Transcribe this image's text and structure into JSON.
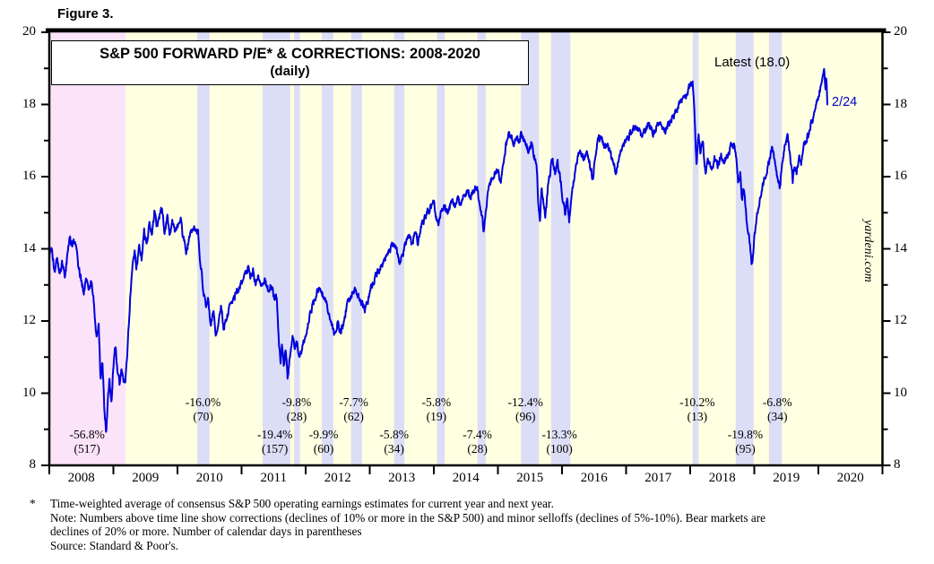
{
  "figure_label": "Figure 3.",
  "title_line1": "S&P 500 FORWARD P/E* & CORRECTIONS: 2008-2020",
  "title_line2": "(daily)",
  "latest_label": "Latest (18.0)",
  "end_date_label": "2/24",
  "watermark": "yardeni.com",
  "footnotes": {
    "asterisk": "*",
    "lines": [
      "Time-weighted average of consensus S&P 500 operating earnings estimates for current year and next year.",
      "Note: Numbers above time line show corrections (declines of 10% or more in the S&P 500) and minor selloffs (declines of 5%-10%). Bear markets are",
      "declines of 20% or more. Number of calendar days in parentheses",
      "Source: Standard & Poor's."
    ]
  },
  "colors": {
    "plot_background": "#FFFFE1",
    "bear_market_band": "#FBE3F9",
    "correction_band": "#DCDDF6",
    "line": "#0000DC",
    "end_date_text": "#0000CC",
    "frame": "#000000"
  },
  "chart_data": {
    "type": "line",
    "title": "S&P 500 FORWARD P/E* & CORRECTIONS: 2008-2020",
    "subtitle": "(daily)",
    "series_name": "S&P 500 forward P/E (daily)",
    "latest_value": 18.0,
    "latest_date": "2/24",
    "x_axis": {
      "min": 2008,
      "max": 2021,
      "year_labels": [
        "2008",
        "2009",
        "2010",
        "2011",
        "2012",
        "2013",
        "2014",
        "2015",
        "2016",
        "2017",
        "2018",
        "2019",
        "2020"
      ]
    },
    "y_axis": {
      "min": 8,
      "max": 20,
      "tick_step": 1,
      "label_step": 2,
      "labels": [
        "8",
        "10",
        "12",
        "14",
        "16",
        "18",
        "20"
      ]
    },
    "grid": false,
    "bear_market": {
      "t0": 2008.0,
      "t1": 2009.19,
      "pct": "-56.8%",
      "days": "(517)",
      "row": "lower",
      "label_t": 2008.59
    },
    "corrections": [
      {
        "t0": 2010.31,
        "t1": 2010.5,
        "pct": "-16.0%",
        "days": "(70)",
        "row": "upper",
        "label_t": 2010.4
      },
      {
        "t0": 2011.33,
        "t1": 2011.76,
        "pct": "-19.4%",
        "days": "(157)",
        "row": "lower",
        "label_t": 2011.52
      },
      {
        "t0": 2011.82,
        "t1": 2011.91,
        "pct": "-9.8%",
        "days": "(28)",
        "row": "upper",
        "label_t": 2011.86
      },
      {
        "t0": 2012.25,
        "t1": 2012.43,
        "pct": "-9.9%",
        "days": "(60)",
        "row": "lower",
        "label_t": 2012.28
      },
      {
        "t0": 2012.71,
        "t1": 2012.88,
        "pct": "-7.7%",
        "days": "(62)",
        "row": "upper",
        "label_t": 2012.75
      },
      {
        "t0": 2013.38,
        "t1": 2013.54,
        "pct": "-5.8%",
        "days": "(34)",
        "row": "lower",
        "label_t": 2013.38
      },
      {
        "t0": 2014.05,
        "t1": 2014.17,
        "pct": "-5.8%",
        "days": "(19)",
        "row": "upper",
        "label_t": 2014.04
      },
      {
        "t0": 2014.68,
        "t1": 2014.81,
        "pct": "-7.4%",
        "days": "(28)",
        "row": "lower",
        "label_t": 2014.68
      },
      {
        "t0": 2015.36,
        "t1": 2015.64,
        "pct": "-12.4%",
        "days": "(96)",
        "row": "upper",
        "label_t": 2015.43
      },
      {
        "t0": 2015.83,
        "t1": 2016.13,
        "pct": "-13.3%",
        "days": "(100)",
        "row": "lower",
        "label_t": 2015.96
      },
      {
        "t0": 2018.04,
        "t1": 2018.13,
        "pct": "-10.2%",
        "days": "(13)",
        "row": "upper",
        "label_t": 2018.11
      },
      {
        "t0": 2018.71,
        "t1": 2018.99,
        "pct": "-19.8%",
        "days": "(95)",
        "row": "lower",
        "label_t": 2018.86
      },
      {
        "t0": 2019.23,
        "t1": 2019.43,
        "pct": "-6.8%",
        "days": "(34)",
        "row": "upper",
        "label_t": 2019.36
      }
    ],
    "keypoints": [
      [
        2008.0,
        13.8
      ],
      [
        2008.04,
        14.0
      ],
      [
        2008.08,
        13.4
      ],
      [
        2008.12,
        13.7
      ],
      [
        2008.16,
        13.3
      ],
      [
        2008.2,
        13.6
      ],
      [
        2008.24,
        13.2
      ],
      [
        2008.28,
        13.8
      ],
      [
        2008.32,
        14.3
      ],
      [
        2008.36,
        14.1
      ],
      [
        2008.4,
        14.3
      ],
      [
        2008.45,
        13.6
      ],
      [
        2008.5,
        13.1
      ],
      [
        2008.54,
        12.8
      ],
      [
        2008.58,
        13.2
      ],
      [
        2008.62,
        12.9
      ],
      [
        2008.66,
        13.1
      ],
      [
        2008.7,
        12.4
      ],
      [
        2008.74,
        11.5
      ],
      [
        2008.77,
        11.9
      ],
      [
        2008.8,
        10.4
      ],
      [
        2008.83,
        10.9
      ],
      [
        2008.86,
        9.5
      ],
      [
        2008.89,
        8.9
      ],
      [
        2008.92,
        10.0
      ],
      [
        2008.94,
        10.4
      ],
      [
        2008.97,
        9.7
      ],
      [
        2009.0,
        10.8
      ],
      [
        2009.03,
        11.3
      ],
      [
        2009.06,
        10.7
      ],
      [
        2009.1,
        10.2
      ],
      [
        2009.13,
        10.7
      ],
      [
        2009.16,
        10.2
      ],
      [
        2009.19,
        10.4
      ],
      [
        2009.22,
        11.2
      ],
      [
        2009.26,
        12.6
      ],
      [
        2009.3,
        13.5
      ],
      [
        2009.33,
        13.9
      ],
      [
        2009.36,
        13.4
      ],
      [
        2009.4,
        14.1
      ],
      [
        2009.44,
        13.7
      ],
      [
        2009.48,
        14.5
      ],
      [
        2009.52,
        14.1
      ],
      [
        2009.56,
        14.7
      ],
      [
        2009.6,
        14.3
      ],
      [
        2009.64,
        15.0
      ],
      [
        2009.68,
        14.6
      ],
      [
        2009.72,
        14.9
      ],
      [
        2009.76,
        15.1
      ],
      [
        2009.8,
        14.4
      ],
      [
        2009.84,
        14.9
      ],
      [
        2009.88,
        14.4
      ],
      [
        2009.92,
        14.8
      ],
      [
        2009.96,
        14.5
      ],
      [
        2010.0,
        14.6
      ],
      [
        2010.05,
        14.8
      ],
      [
        2010.1,
        14.2
      ],
      [
        2010.14,
        13.9
      ],
      [
        2010.18,
        14.3
      ],
      [
        2010.23,
        14.6
      ],
      [
        2010.28,
        14.6
      ],
      [
        2010.32,
        14.4
      ],
      [
        2010.36,
        13.6
      ],
      [
        2010.4,
        12.9
      ],
      [
        2010.44,
        12.4
      ],
      [
        2010.48,
        12.6
      ],
      [
        2010.52,
        11.9
      ],
      [
        2010.56,
        12.3
      ],
      [
        2010.6,
        11.6
      ],
      [
        2010.64,
        12.0
      ],
      [
        2010.68,
        12.4
      ],
      [
        2010.72,
        11.8
      ],
      [
        2010.76,
        12.0
      ],
      [
        2010.8,
        12.3
      ],
      [
        2010.85,
        12.5
      ],
      [
        2010.9,
        12.7
      ],
      [
        2010.95,
        12.9
      ],
      [
        2011.0,
        13.1
      ],
      [
        2011.05,
        13.3
      ],
      [
        2011.1,
        13.5
      ],
      [
        2011.14,
        13.2
      ],
      [
        2011.18,
        13.4
      ],
      [
        2011.22,
        13.0
      ],
      [
        2011.27,
        13.2
      ],
      [
        2011.32,
        12.9
      ],
      [
        2011.36,
        13.1
      ],
      [
        2011.41,
        12.9
      ],
      [
        2011.46,
        13.0
      ],
      [
        2011.51,
        12.7
      ],
      [
        2011.55,
        12.6
      ],
      [
        2011.58,
        11.4
      ],
      [
        2011.61,
        10.8
      ],
      [
        2011.63,
        11.4
      ],
      [
        2011.66,
        10.7
      ],
      [
        2011.69,
        11.2
      ],
      [
        2011.72,
        10.4
      ],
      [
        2011.76,
        11.1
      ],
      [
        2011.8,
        11.6
      ],
      [
        2011.83,
        11.2
      ],
      [
        2011.86,
        11.5
      ],
      [
        2011.9,
        11.0
      ],
      [
        2011.94,
        11.2
      ],
      [
        2011.98,
        11.5
      ],
      [
        2012.02,
        11.8
      ],
      [
        2012.07,
        12.2
      ],
      [
        2012.12,
        12.5
      ],
      [
        2012.17,
        12.8
      ],
      [
        2012.22,
        12.9
      ],
      [
        2012.27,
        12.7
      ],
      [
        2012.32,
        12.5
      ],
      [
        2012.37,
        12.1
      ],
      [
        2012.42,
        11.8
      ],
      [
        2012.46,
        11.6
      ],
      [
        2012.5,
        12.0
      ],
      [
        2012.54,
        11.7
      ],
      [
        2012.58,
        11.9
      ],
      [
        2012.63,
        12.3
      ],
      [
        2012.68,
        12.6
      ],
      [
        2012.73,
        12.8
      ],
      [
        2012.78,
        12.9
      ],
      [
        2012.83,
        12.7
      ],
      [
        2012.88,
        12.5
      ],
      [
        2012.93,
        12.3
      ],
      [
        2012.98,
        12.6
      ],
      [
        2013.03,
        13.0
      ],
      [
        2013.08,
        13.2
      ],
      [
        2013.14,
        13.4
      ],
      [
        2013.2,
        13.6
      ],
      [
        2013.26,
        13.8
      ],
      [
        2013.32,
        14.0
      ],
      [
        2013.38,
        14.2
      ],
      [
        2013.43,
        13.9
      ],
      [
        2013.47,
        13.6
      ],
      [
        2013.52,
        13.9
      ],
      [
        2013.57,
        14.2
      ],
      [
        2013.62,
        14.4
      ],
      [
        2013.66,
        14.1
      ],
      [
        2013.7,
        14.4
      ],
      [
        2013.75,
        14.2
      ],
      [
        2013.8,
        14.6
      ],
      [
        2013.85,
        14.8
      ],
      [
        2013.9,
        15.0
      ],
      [
        2013.95,
        15.1
      ],
      [
        2014.0,
        15.3
      ],
      [
        2014.04,
        14.8
      ],
      [
        2014.08,
        14.7
      ],
      [
        2014.12,
        15.1
      ],
      [
        2014.17,
        15.2
      ],
      [
        2014.22,
        15.0
      ],
      [
        2014.27,
        15.3
      ],
      [
        2014.32,
        15.2
      ],
      [
        2014.37,
        15.4
      ],
      [
        2014.42,
        15.3
      ],
      [
        2014.47,
        15.5
      ],
      [
        2014.52,
        15.6
      ],
      [
        2014.57,
        15.4
      ],
      [
        2014.62,
        15.6
      ],
      [
        2014.67,
        15.7
      ],
      [
        2014.71,
        15.3
      ],
      [
        2014.75,
        14.9
      ],
      [
        2014.78,
        14.5
      ],
      [
        2014.82,
        15.2
      ],
      [
        2014.86,
        15.7
      ],
      [
        2014.9,
        15.9
      ],
      [
        2014.95,
        16.1
      ],
      [
        2015.0,
        16.2
      ],
      [
        2015.04,
        15.8
      ],
      [
        2015.08,
        16.3
      ],
      [
        2015.12,
        16.8
      ],
      [
        2015.16,
        17.1
      ],
      [
        2015.2,
        17.2
      ],
      [
        2015.24,
        16.9
      ],
      [
        2015.28,
        17.1
      ],
      [
        2015.32,
        17.0
      ],
      [
        2015.36,
        17.2
      ],
      [
        2015.4,
        17.0
      ],
      [
        2015.44,
        16.9
      ],
      [
        2015.48,
        16.7
      ],
      [
        2015.52,
        16.9
      ],
      [
        2015.56,
        16.6
      ],
      [
        2015.6,
        16.4
      ],
      [
        2015.63,
        15.3
      ],
      [
        2015.655,
        14.7
      ],
      [
        2015.68,
        15.7
      ],
      [
        2015.71,
        15.3
      ],
      [
        2015.74,
        14.9
      ],
      [
        2015.78,
        15.7
      ],
      [
        2015.82,
        16.2
      ],
      [
        2015.85,
        16.5
      ],
      [
        2015.89,
        16.1
      ],
      [
        2015.93,
        16.4
      ],
      [
        2015.97,
        16.0
      ],
      [
        2016.01,
        15.4
      ],
      [
        2016.05,
        14.9
      ],
      [
        2016.08,
        15.4
      ],
      [
        2016.11,
        14.7
      ],
      [
        2016.15,
        15.5
      ],
      [
        2016.19,
        16.0
      ],
      [
        2016.24,
        16.5
      ],
      [
        2016.28,
        16.7
      ],
      [
        2016.33,
        16.5
      ],
      [
        2016.38,
        16.7
      ],
      [
        2016.43,
        16.4
      ],
      [
        2016.48,
        15.9
      ],
      [
        2016.52,
        16.6
      ],
      [
        2016.56,
        17.1
      ],
      [
        2016.61,
        17.0
      ],
      [
        2016.66,
        16.8
      ],
      [
        2016.71,
        16.9
      ],
      [
        2016.76,
        16.6
      ],
      [
        2016.81,
        16.3
      ],
      [
        2016.85,
        16.1
      ],
      [
        2016.9,
        16.6
      ],
      [
        2016.95,
        16.9
      ],
      [
        2017.0,
        17.0
      ],
      [
        2017.06,
        17.2
      ],
      [
        2017.12,
        17.4
      ],
      [
        2017.18,
        17.3
      ],
      [
        2017.24,
        17.1
      ],
      [
        2017.3,
        17.3
      ],
      [
        2017.36,
        17.4
      ],
      [
        2017.42,
        17.2
      ],
      [
        2017.48,
        17.4
      ],
      [
        2017.54,
        17.5
      ],
      [
        2017.6,
        17.2
      ],
      [
        2017.66,
        17.5
      ],
      [
        2017.72,
        17.6
      ],
      [
        2017.78,
        17.8
      ],
      [
        2017.84,
        18.0
      ],
      [
        2017.9,
        18.2
      ],
      [
        2017.95,
        18.3
      ],
      [
        2018.0,
        18.5
      ],
      [
        2018.04,
        18.6
      ],
      [
        2018.07,
        17.6
      ],
      [
        2018.1,
        16.3
      ],
      [
        2018.13,
        17.2
      ],
      [
        2018.16,
        16.7
      ],
      [
        2018.2,
        16.9
      ],
      [
        2018.24,
        16.1
      ],
      [
        2018.28,
        16.5
      ],
      [
        2018.33,
        16.2
      ],
      [
        2018.38,
        16.5
      ],
      [
        2018.43,
        16.3
      ],
      [
        2018.48,
        16.6
      ],
      [
        2018.53,
        16.4
      ],
      [
        2018.58,
        16.6
      ],
      [
        2018.63,
        16.8
      ],
      [
        2018.68,
        16.9
      ],
      [
        2018.72,
        16.5
      ],
      [
        2018.75,
        15.8
      ],
      [
        2018.78,
        16.1
      ],
      [
        2018.81,
        15.4
      ],
      [
        2018.84,
        15.7
      ],
      [
        2018.87,
        15.0
      ],
      [
        2018.9,
        14.5
      ],
      [
        2018.93,
        14.2
      ],
      [
        2018.96,
        13.5
      ],
      [
        2019.0,
        14.3
      ],
      [
        2019.04,
        14.9
      ],
      [
        2019.08,
        15.3
      ],
      [
        2019.13,
        15.7
      ],
      [
        2019.18,
        16.1
      ],
      [
        2019.23,
        16.4
      ],
      [
        2019.28,
        16.8
      ],
      [
        2019.32,
        16.4
      ],
      [
        2019.36,
        16.0
      ],
      [
        2019.4,
        15.7
      ],
      [
        2019.44,
        16.4
      ],
      [
        2019.48,
        16.9
      ],
      [
        2019.52,
        17.1
      ],
      [
        2019.56,
        16.6
      ],
      [
        2019.6,
        15.9
      ],
      [
        2019.63,
        16.4
      ],
      [
        2019.66,
        16.1
      ],
      [
        2019.7,
        16.6
      ],
      [
        2019.73,
        16.3
      ],
      [
        2019.77,
        16.8
      ],
      [
        2019.81,
        17.0
      ],
      [
        2019.85,
        17.2
      ],
      [
        2019.89,
        17.5
      ],
      [
        2019.93,
        17.7
      ],
      [
        2019.97,
        18.1
      ],
      [
        2020.01,
        18.3
      ],
      [
        2020.05,
        18.6
      ],
      [
        2020.09,
        19.0
      ],
      [
        2020.11,
        18.4
      ],
      [
        2020.125,
        18.8
      ],
      [
        2020.14,
        18.0
      ]
    ]
  }
}
